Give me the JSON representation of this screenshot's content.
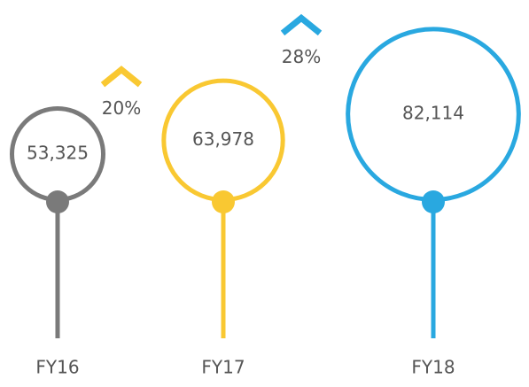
{
  "chart_data": {
    "type": "lollipop-bubble",
    "categories": [
      "FY16",
      "FY17",
      "FY18"
    ],
    "values": [
      53325,
      63978,
      82114
    ],
    "value_labels": [
      "53,325",
      "63,978",
      "82,114"
    ],
    "colors": [
      "#7a7a7a",
      "#f9c832",
      "#29a8e0"
    ],
    "growth": [
      20,
      28
    ],
    "growth_labels": [
      "20%",
      "28%"
    ]
  }
}
